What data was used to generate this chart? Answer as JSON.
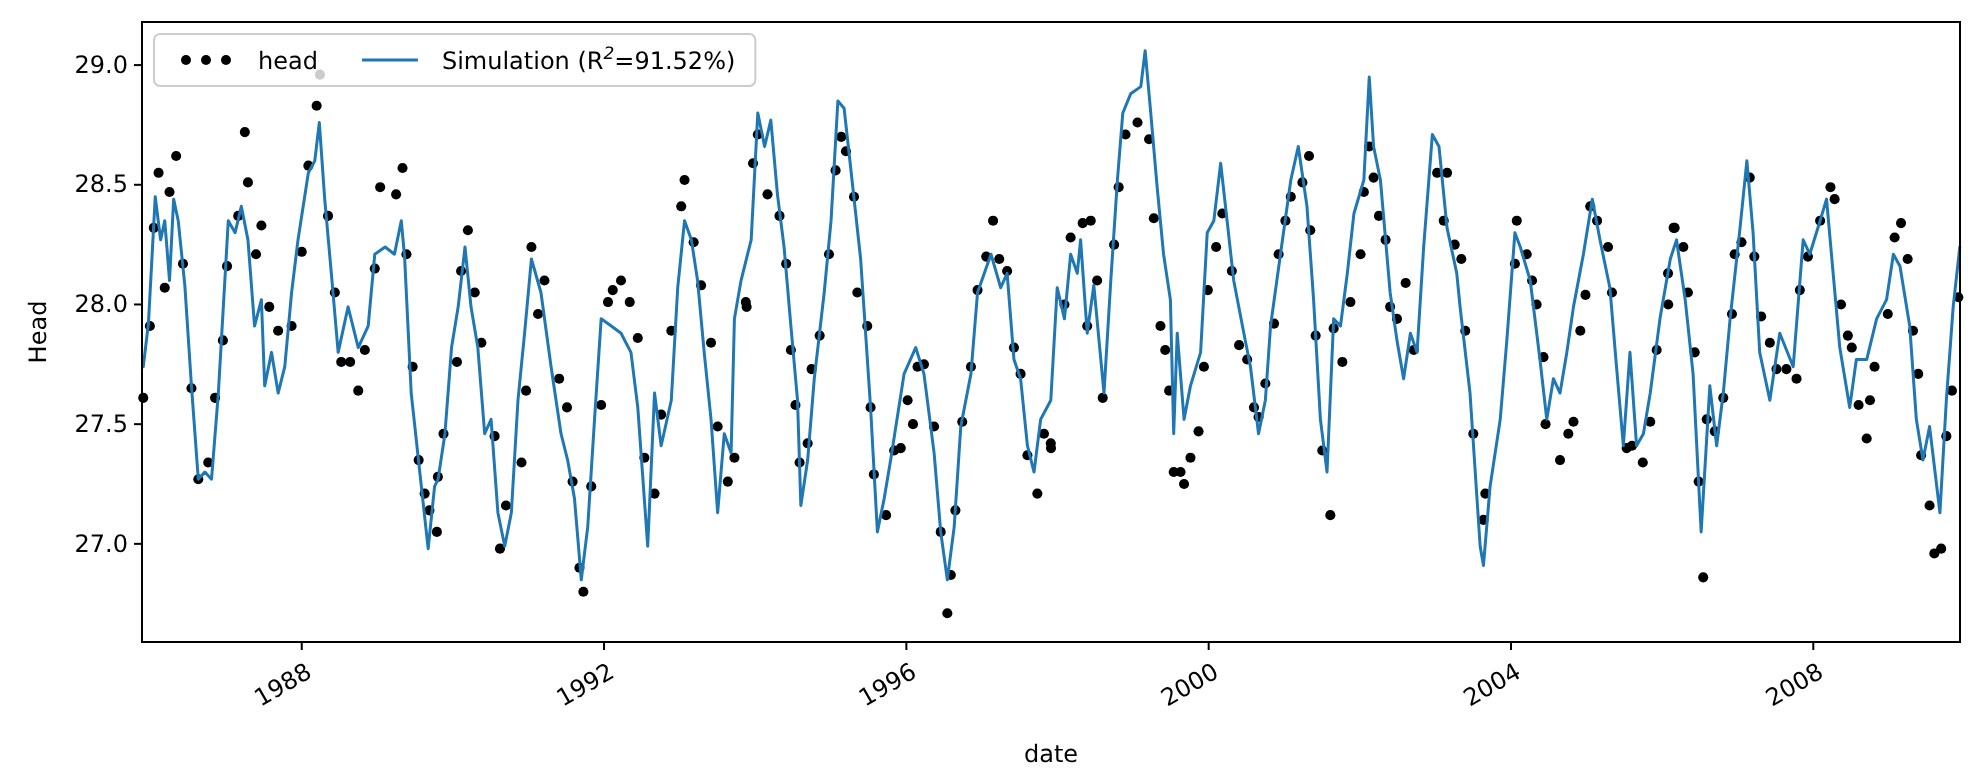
{
  "chart_data": {
    "type": "line",
    "xlabel": "date",
    "ylabel": "Head",
    "legend": "top left",
    "grid": false,
    "xlim": [
      "1985-11-20",
      "2009-12-10"
    ],
    "xticks": [
      "1988",
      "1992",
      "1996",
      "2000",
      "2004",
      "2008"
    ],
    "ylim": [
      26.59,
      29.18
    ],
    "yticks": [
      {
        "value": 27,
        "label": "27.0"
      },
      {
        "value": 27.5,
        "label": "27.5"
      },
      {
        "value": 28,
        "label": "28.0"
      },
      {
        "value": 28.5,
        "label": "28.5"
      },
      {
        "value": 29,
        "label": "29.0"
      }
    ],
    "series": [
      {
        "name": "head",
        "type": "scatter",
        "marker": "circle",
        "color": "#000000",
        "x": [
          "1985-11-26",
          "1985-12-28",
          "1986-01-16",
          "1986-02-08",
          "1986-03-10",
          "1986-04-02",
          "1986-05-04",
          "1986-06-06",
          "1986-07-17",
          "1986-08-19",
          "1986-10-06",
          "1986-11-08",
          "1986-12-16",
          "1987-01-05",
          "1987-02-28",
          "1987-04-01",
          "1987-04-16",
          "1987-05-25",
          "1987-06-20",
          "1987-07-28",
          "1987-09-09",
          "1987-11-13",
          "1988-01-01",
          "1988-02-02",
          "1988-03-13",
          "1988-03-29",
          "1988-05-07",
          "1988-06-09",
          "1988-07-10",
          "1988-08-22",
          "1988-09-30",
          "1988-11-01",
          "1988-12-19",
          "1989-01-14",
          "1989-04-01",
          "1989-05-02",
          "1989-05-21",
          "1989-06-20",
          "1989-07-19",
          "1989-08-17",
          "1989-09-09",
          "1989-10-20",
          "1989-10-15",
          "1989-11-16",
          "1990-01-20",
          "1990-02-09",
          "1990-03-14",
          "1990-04-16",
          "1990-05-18",
          "1990-07-21",
          "1990-08-16",
          "1990-09-14",
          "1990-11-28",
          "1990-12-20",
          "1991-01-15",
          "1991-02-16",
          "1991-03-19",
          "1991-05-29",
          "1991-07-06",
          "1991-08-02",
          "1991-09-04",
          "1991-09-23",
          "1991-10-31",
          "1991-12-18",
          "1992-01-20",
          "1992-02-12",
          "1992-03-23",
          "1992-05-04",
          "1992-06-12",
          "1992-07-14",
          "1992-09-01",
          "1992-10-03",
          "1992-11-21",
          "1993-01-08",
          "1993-01-24",
          "1993-03-09",
          "1993-04-14",
          "1993-06-01",
          "1993-07-03",
          "1993-08-21",
          "1993-09-22",
          "1993-11-16",
          "1993-11-20",
          "1993-12-21",
          "1994-01-13",
          "1994-03-01",
          "1994-04-28",
          "1994-05-30",
          "1994-06-22",
          "1994-07-14",
          "1994-08-03",
          "1994-09-11",
          "1994-09-30",
          "1994-11-08",
          "1994-12-23",
          "1995-01-24",
          "1995-02-20",
          "1995-03-15",
          "1995-04-23",
          "1995-05-09",
          "1995-06-26",
          "1995-07-12",
          "1995-07-28",
          "1995-09-25",
          "1995-11-03",
          "1995-12-05",
          "1996-01-07",
          "1996-02-02",
          "1996-02-24",
          "1996-03-26",
          "1996-05-14",
          "1996-06-15",
          "1996-08-03",
          "1996-07-17",
          "1996-08-25",
          "1996-09-27",
          "1996-11-08",
          "1996-12-10",
          "1997-01-21",
          "1997-02-23",
          "1997-03-25",
          "1997-05-02",
          "1997-06-04",
          "1997-07-06",
          "1997-08-08",
          "1997-09-25",
          "1997-10-27",
          "1997-11-29",
          "1997-11-30",
          "1998-02-03",
          "1998-03-05",
          "1998-05-02",
          "1998-06-10",
          "1998-05-24",
          "1998-07-11",
          "1998-08-07",
          "1998-10-01",
          "1998-10-23",
          "1998-11-25",
          "1999-01-22",
          "1999-03-19",
          "1999-04-11",
          "1999-05-13",
          "1999-06-05",
          "1999-06-24",
          "1999-07-16",
          "1999-08-18",
          "1999-09-04",
          "1999-10-05",
          "1999-11-13",
          "1999-12-09",
          "1999-12-28",
          "2000-02-06",
          "2000-03-07",
          "2000-04-22",
          "2000-05-27",
          "2000-07-05",
          "2000-08-07",
          "2000-08-29",
          "2000-10-01",
          "2000-11-12",
          "2000-12-04",
          "2001-01-06",
          "2001-02-01",
          "2001-03-29",
          "2001-04-30",
          "2001-05-06",
          "2001-06-01",
          "2001-07-03",
          "2001-08-11",
          "2001-08-27",
          "2001-10-08",
          "2001-11-16",
          "2002-01-04",
          "2002-01-20",
          "2002-02-15",
          "2002-03-08",
          "2002-04-03",
          "2002-05-05",
          "2002-05-27",
          "2002-06-29",
          "2002-08-10",
          "2002-09-18",
          "2003-01-09",
          "2003-02-26",
          "2003-02-10",
          "2003-04-04",
          "2003-05-06",
          "2003-05-25",
          "2003-07-03",
          "2003-08-21",
          "2003-08-30",
          "2004-01-29",
          "2004-01-20",
          "2004-03-17",
          "2004-04-12",
          "2004-05-04",
          "2004-06-06",
          "2004-06-16",
          "2004-08-25",
          "2004-10-04",
          "2004-10-29",
          "2004-12-01",
          "2004-12-26",
          "2005-01-18",
          "2005-02-20",
          "2005-04-14",
          "2005-05-03",
          "2005-07-13",
          "2005-08-08",
          "2005-09-29",
          "2005-11-04",
          "2005-12-05",
          "2006-01-29",
          "2006-02-25",
          "2006-01-30",
          "2006-03-02",
          "2006-04-13",
          "2006-05-05",
          "2006-06-07",
          "2006-06-26",
          "2006-07-18",
          "2006-08-04",
          "2006-09-12",
          "2006-10-23",
          "2006-12-04",
          "2006-12-17",
          "2007-01-19",
          "2007-02-28",
          "2007-03-22",
          "2007-04-24",
          "2007-06-05",
          "2007-07-07",
          "2007-08-24",
          "2007-10-12",
          "2007-10-28",
          "2007-12-06",
          "2008-02-03",
          "2008-03-24",
          "2008-04-13",
          "2008-05-14",
          "2008-06-16",
          "2008-07-05",
          "2008-08-07",
          "2008-09-15",
          "2008-10-01",
          "2008-10-23",
          "2008-12-26",
          "2009-01-28",
          "2009-02-28",
          "2009-04-01",
          "2009-04-27",
          "2009-05-22",
          "2009-06-05",
          "2009-07-16",
          "2009-08-08",
          "2009-09-10",
          "2009-10-05",
          "2009-11-01",
          "2009-12-02"
        ],
        "values": [
          27.61,
          27.91,
          28.32,
          28.55,
          28.07,
          28.47,
          28.62,
          28.17,
          27.65,
          27.27,
          27.34,
          27.61,
          27.85,
          28.16,
          28.37,
          28.72,
          28.51,
          28.21,
          28.33,
          27.99,
          27.89,
          27.91,
          28.22,
          28.58,
          28.83,
          28.96,
          28.37,
          28.05,
          27.76,
          27.76,
          27.64,
          27.81,
          28.15,
          28.49,
          28.46,
          28.57,
          28.21,
          27.74,
          27.35,
          27.21,
          27.14,
          27.28,
          27.05,
          27.46,
          27.76,
          28.14,
          28.31,
          28.05,
          27.84,
          27.45,
          26.98,
          27.16,
          27.34,
          27.64,
          28.24,
          27.96,
          28.1,
          27.69,
          27.57,
          27.26,
          26.9,
          26.8,
          27.24,
          27.58,
          28.01,
          28.06,
          28.1,
          28.01,
          27.86,
          27.36,
          27.21,
          27.54,
          27.89,
          28.41,
          28.52,
          28.26,
          28.08,
          27.84,
          27.49,
          27.26,
          27.36,
          28.01,
          27.99,
          28.59,
          28.71,
          28.46,
          28.37,
          28.17,
          27.81,
          27.58,
          27.34,
          27.42,
          27.73,
          27.87,
          28.21,
          28.56,
          28.7,
          28.64,
          28.45,
          28.05,
          27.91,
          27.57,
          27.29,
          27.12,
          27.39,
          27.4,
          27.6,
          27.5,
          27.74,
          27.75,
          27.49,
          27.05,
          26.87,
          26.71,
          27.14,
          27.51,
          27.74,
          28.06,
          28.2,
          28.35,
          28.19,
          28.14,
          27.82,
          27.71,
          27.37,
          27.21,
          27.46,
          27.42,
          27.4,
          28.0,
          28.28,
          28.34,
          28.35,
          27.91,
          28.1,
          27.61,
          28.25,
          28.49,
          28.71,
          28.76,
          28.69,
          28.36,
          27.91,
          27.81,
          27.64,
          27.3,
          27.3,
          27.25,
          27.36,
          27.47,
          27.74,
          28.06,
          28.24,
          28.38,
          28.14,
          27.83,
          27.77,
          27.57,
          27.53,
          27.67,
          27.92,
          28.21,
          28.35,
          28.45,
          28.51,
          28.62,
          28.31,
          27.87,
          27.39,
          27.12,
          27.9,
          27.76,
          28.01,
          28.21,
          28.47,
          28.66,
          28.53,
          28.37,
          28.27,
          27.99,
          27.94,
          28.09,
          27.81,
          28.55,
          28.55,
          28.35,
          28.25,
          28.19,
          27.89,
          27.46,
          27.1,
          27.21,
          28.35,
          28.17,
          28.21,
          28.1,
          28.0,
          27.78,
          27.5,
          27.35,
          27.46,
          27.51,
          27.89,
          28.04,
          28.41,
          28.35,
          28.24,
          28.05,
          27.4,
          27.41,
          27.34,
          27.51,
          27.81,
          28.13,
          28.32,
          28.0,
          28.32,
          28.24,
          28.05,
          27.8,
          27.26,
          26.86,
          27.52,
          27.47,
          27.61,
          27.96,
          28.21,
          28.26,
          28.53,
          28.2,
          27.95,
          27.84,
          27.73,
          27.73,
          27.69,
          28.06,
          28.2,
          28.35,
          28.49,
          28.44,
          28.0,
          27.87,
          27.82,
          27.58,
          27.44,
          27.6,
          27.74,
          27.96,
          28.28,
          28.34,
          28.19,
          27.89,
          27.71,
          27.37,
          27.16,
          26.96,
          26.98,
          27.45,
          27.64,
          28.03
        ]
      },
      {
        "name": "Simulation (R$^{2}$=91.52%)",
        "line_style": "solid",
        "color": "#1f77b4",
        "x": [
          "1985-11-26",
          "1985-12-21",
          "1986-01-23",
          "1986-02-18",
          "1986-03-10",
          "1986-04-02",
          "1986-04-22",
          "1986-05-14",
          "1986-06-15",
          "1986-07-17",
          "1986-08-19",
          "1986-09-20",
          "1986-10-22",
          "1986-11-24",
          "1987-01-11",
          "1987-02-13",
          "1987-03-15",
          "1987-04-16",
          "1987-05-18",
          "1987-06-20",
          "1987-07-06",
          "1987-08-08",
          "1987-09-09",
          "1987-10-11",
          "1987-11-13",
          "1987-12-14",
          "1988-02-02",
          "1988-03-04",
          "1988-03-26",
          "1988-04-21",
          "1988-05-23",
          "1988-06-25",
          "1988-08-12",
          "1988-09-30",
          "1988-11-17",
          "1988-12-19",
          "1989-02-07",
          "1989-03-24",
          "1989-04-26",
          "1989-05-12",
          "1989-06-13",
          "1989-08-01",
          "1989-09-03",
          "1989-10-04",
          "1989-10-21",
          "1989-11-23",
          "1989-12-25",
          "1990-01-26",
          "1990-02-28",
          "1990-03-29",
          "1990-05-01",
          "1990-06-03",
          "1990-07-04",
          "1990-08-06",
          "1990-09-08",
          "1990-10-10",
          "1990-11-11",
          "1990-12-13",
          "1991-01-15",
          "1991-03-02",
          "1991-04-20",
          "1991-06-07",
          "1991-07-09",
          "1991-08-11",
          "1991-09-13",
          "1991-10-14",
          "1991-11-16",
          "1991-12-18",
          "1992-02-05",
          "1992-03-23",
          "1992-05-10",
          "1992-06-12",
          "1992-07-30",
          "1992-09-01",
          "1992-10-03",
          "1992-11-21",
          "1992-12-22",
          "1993-01-24",
          "1993-02-26",
          "1993-03-28",
          "1993-04-29",
          "1993-06-01",
          "1993-07-03",
          "1993-08-04",
          "1993-09-06",
          "1993-09-22",
          "1993-10-24",
          "1993-12-12",
          "1994-01-13",
          "1994-02-15",
          "1994-03-17",
          "1994-04-18",
          "1994-05-20",
          "1994-06-22",
          "1994-07-24",
          "1994-08-09",
          "1994-09-11",
          "1994-10-13",
          "1994-11-30",
          "1995-01-02",
          "1995-02-04",
          "1995-03-06",
          "1995-04-07",
          "1995-05-25",
          "1995-07-12",
          "1995-08-14",
          "1995-09-16",
          "1995-10-17",
          "1995-12-21",
          "1996-02-15",
          "1996-03-26",
          "1996-05-14",
          "1996-06-15",
          "1996-07-17",
          "1996-08-19",
          "1996-09-20",
          "1996-11-08",
          "1996-12-10",
          "1997-02-13",
          "1997-04-01",
          "1997-05-02",
          "1997-06-04",
          "1997-07-06",
          "1997-08-08",
          "1997-09-09",
          "1997-10-11",
          "1997-11-29",
          "1997-12-30",
          "1998-02-03",
          "1998-03-05",
          "1998-04-06",
          "1998-04-22",
          "1998-05-24",
          "1998-06-25",
          "1998-08-13",
          "1998-09-15",
          "1998-10-17",
          "1998-11-12",
          "1998-12-20",
          "1999-02-07",
          "1999-02-28",
          "1999-03-25",
          "1999-04-27",
          "1999-05-28",
          "1999-06-30",
          "1999-07-16",
          "1999-08-02",
          "1999-09-04",
          "1999-10-05",
          "1999-11-23",
          "1999-12-25",
          "2000-01-26",
          "2000-02-28",
          "2000-03-30",
          "2000-05-01",
          "2000-06-19",
          "2000-07-21",
          "2000-08-29",
          "2000-10-01",
          "2000-10-26",
          "2000-12-13",
          "2001-02-01",
          "2001-03-09",
          "2001-04-20",
          "2001-05-22",
          "2001-06-24",
          "2001-07-26",
          "2001-08-27",
          "2001-09-29",
          "2001-11-01",
          "2001-12-03",
          "2002-01-20",
          "2002-02-15",
          "2002-03-08",
          "2002-04-10",
          "2002-05-27",
          "2002-06-29",
          "2002-07-31",
          "2002-09-02",
          "2002-10-04",
          "2002-11-05",
          "2002-12-17",
          "2003-01-18",
          "2003-02-26",
          "2003-04-14",
          "2003-04-30",
          "2003-06-17",
          "2003-08-05",
          "2003-08-21",
          "2003-09-22",
          "2003-11-10",
          "2003-12-12",
          "2004-01-20",
          "2004-02-15",
          "2004-04-03",
          "2004-05-20",
          "2004-06-22",
          "2004-07-24",
          "2004-08-25",
          "2004-09-27",
          "2004-10-29",
          "2004-12-16",
          "2005-01-28",
          "2005-03-06",
          "2005-04-23",
          "2005-05-25",
          "2005-06-27",
          "2005-07-29",
          "2005-08-30",
          "2005-10-02",
          "2005-11-04",
          "2005-12-21",
          "2006-02-09",
          "2006-03-11",
          "2006-04-22",
          "2006-05-30",
          "2006-07-08",
          "2006-08-19",
          "2006-09-21",
          "2006-10-23",
          "2006-11-25",
          "2007-01-12",
          "2007-02-14",
          "2007-03-16",
          "2007-04-17",
          "2007-06-05",
          "2007-07-23",
          "2007-09-26",
          "2007-11-13",
          "2007-12-15",
          "2008-02-03",
          "2008-03-05",
          "2008-04-06",
          "2008-05-08",
          "2008-06-25",
          "2008-07-27",
          "2008-09-15",
          "2008-11-02",
          "2008-12-20",
          "2009-01-22",
          "2009-02-23",
          "2009-04-11",
          "2009-05-13",
          "2009-06-14",
          "2009-07-16",
          "2009-09-04",
          "2009-10-05",
          "2009-11-07",
          "2009-12-09"
        ],
        "values": [
          27.74,
          27.92,
          28.45,
          28.27,
          28.35,
          28.1,
          28.44,
          28.35,
          28.08,
          27.66,
          27.27,
          27.3,
          27.27,
          27.63,
          28.35,
          28.3,
          28.41,
          28.27,
          27.91,
          28.02,
          27.66,
          27.8,
          27.63,
          27.74,
          28.05,
          28.27,
          28.55,
          28.6,
          28.76,
          28.44,
          28.13,
          27.8,
          27.99,
          27.82,
          27.91,
          28.21,
          28.24,
          28.21,
          28.35,
          28.2,
          27.63,
          27.24,
          26.98,
          27.24,
          27.27,
          27.46,
          27.82,
          27.99,
          28.24,
          27.99,
          27.82,
          27.46,
          27.52,
          27.13,
          26.99,
          27.13,
          27.6,
          27.88,
          28.19,
          28.05,
          27.74,
          27.46,
          27.35,
          27.19,
          26.85,
          27.07,
          27.52,
          27.94,
          27.91,
          27.88,
          27.8,
          27.57,
          26.99,
          27.63,
          27.41,
          27.6,
          28.07,
          28.35,
          28.27,
          28.1,
          27.8,
          27.52,
          27.13,
          27.46,
          27.38,
          27.94,
          28.1,
          28.27,
          28.8,
          28.66,
          28.77,
          28.46,
          28.24,
          27.91,
          27.6,
          27.16,
          27.35,
          27.69,
          28.05,
          28.35,
          28.85,
          28.82,
          28.57,
          28.19,
          27.57,
          27.05,
          27.19,
          27.35,
          27.71,
          27.82,
          27.71,
          27.38,
          27.05,
          26.85,
          27.07,
          27.49,
          27.71,
          28.05,
          28.21,
          28.07,
          28.13,
          27.77,
          27.69,
          27.41,
          27.3,
          27.52,
          27.6,
          28.07,
          27.94,
          28.21,
          28.13,
          28.27,
          27.88,
          28.08,
          27.63,
          28.1,
          28.52,
          28.8,
          28.88,
          28.91,
          29.06,
          28.82,
          28.49,
          28.21,
          28.02,
          27.46,
          27.88,
          27.52,
          27.66,
          27.8,
          28.3,
          28.35,
          28.59,
          28.35,
          28.1,
          27.88,
          27.74,
          27.46,
          27.6,
          27.91,
          28.21,
          28.52,
          28.66,
          28.41,
          28.02,
          27.52,
          27.3,
          27.94,
          27.91,
          28.13,
          28.38,
          28.52,
          28.95,
          28.66,
          28.52,
          28.05,
          27.85,
          27.69,
          27.88,
          27.8,
          28.24,
          28.71,
          28.66,
          28.32,
          28.13,
          27.99,
          27.63,
          26.99,
          26.91,
          27.24,
          27.52,
          27.85,
          28.3,
          28.24,
          28.1,
          27.77,
          27.52,
          27.69,
          27.63,
          27.8,
          27.99,
          28.21,
          28.44,
          28.27,
          28.07,
          27.74,
          27.41,
          27.8,
          27.41,
          27.46,
          27.63,
          27.94,
          28.19,
          28.27,
          28.02,
          27.71,
          27.05,
          27.66,
          27.41,
          27.63,
          27.94,
          28.32,
          28.6,
          28.3,
          27.8,
          27.6,
          27.88,
          27.74,
          28.27,
          28.21,
          28.35,
          28.44,
          28.13,
          27.82,
          27.57,
          27.77,
          27.77,
          27.94,
          28.02,
          28.21,
          28.16,
          27.91,
          27.52,
          27.35,
          27.49,
          27.13,
          27.6,
          27.99,
          28.24
        ]
      }
    ]
  }
}
